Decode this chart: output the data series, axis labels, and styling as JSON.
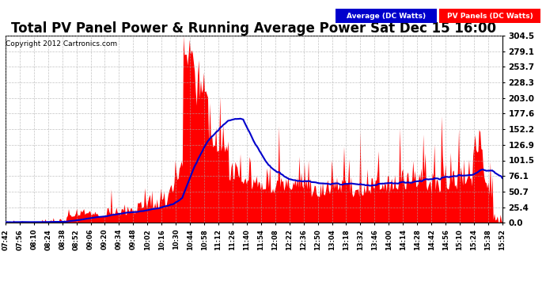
{
  "title": "Total PV Panel Power & Running Average Power Sat Dec 15 16:00",
  "copyright": "Copyright 2012 Cartronics.com",
  "legend_avg": "Average (DC Watts)",
  "legend_pv": "PV Panels (DC Watts)",
  "ylim": [
    0,
    304.5
  ],
  "yticks": [
    0.0,
    25.4,
    50.7,
    76.1,
    101.5,
    126.9,
    152.2,
    177.6,
    203.0,
    228.3,
    253.7,
    279.1,
    304.5
  ],
  "background_color": "#ffffff",
  "grid_color": "#aaaaaa",
  "pv_color": "#ff0000",
  "avg_color": "#0000cc",
  "title_fontsize": 12,
  "xtick_labels": [
    "07:42",
    "07:56",
    "08:10",
    "08:24",
    "08:38",
    "08:52",
    "09:06",
    "09:20",
    "09:34",
    "09:48",
    "10:02",
    "10:16",
    "10:30",
    "10:44",
    "10:58",
    "11:12",
    "11:26",
    "11:40",
    "11:54",
    "12:08",
    "12:22",
    "12:36",
    "12:50",
    "13:04",
    "13:18",
    "13:32",
    "13:46",
    "14:00",
    "14:14",
    "14:28",
    "14:42",
    "14:56",
    "15:10",
    "15:24",
    "15:38",
    "15:52"
  ]
}
